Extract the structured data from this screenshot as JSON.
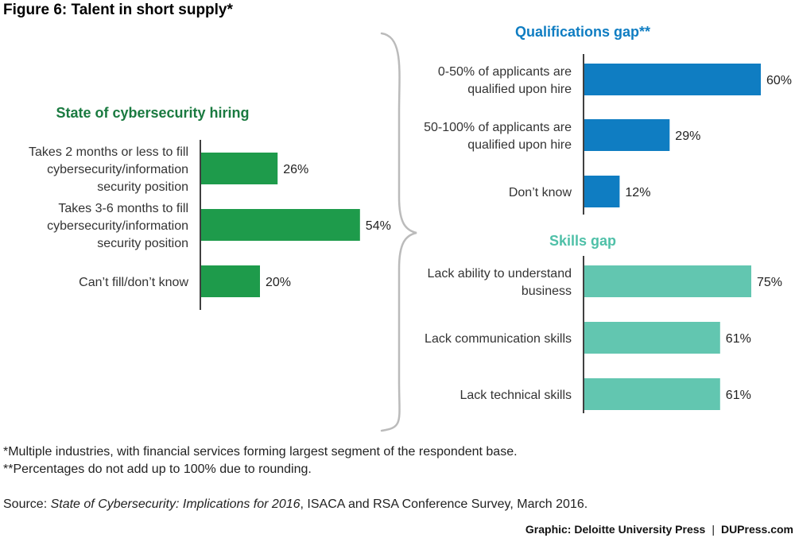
{
  "figure_title": "Figure 6: Talent in short supply*",
  "footnotes": [
    "*Multiple industries, with financial services forming largest segment of the respondent base.",
    "**Percentages do not add up to 100% due to rounding."
  ],
  "source": {
    "prefix": "Source: ",
    "title": "State of Cybersecurity: Implications for 2016",
    "suffix": ", ISACA and RSA Conference Survey, March 2016."
  },
  "credit": {
    "graphic": "Graphic: Deloitte University Press",
    "separator": "|",
    "site": "DUPress.com"
  },
  "colors": {
    "hiring": "#1e9b4b",
    "hiring_title": "#1a7a40",
    "qualifications": "#0f7dc2",
    "qualifications_title": "#0f7dc2",
    "skills": "#62c6b0",
    "skills_title": "#4fc0a8",
    "axis": "#000000",
    "brace": "#bbbbbb"
  },
  "chart_data": [
    {
      "type": "bar",
      "orientation": "horizontal",
      "title": "State of cybersecurity hiring",
      "categories": [
        "Takes 2 months or less to fill cybersecurity/information security position",
        "Takes 3-6 months to fill cybersecurity/information security position",
        "Can’t fill/don’t know"
      ],
      "category_lines": [
        [
          "Takes 2 months or less to fill",
          "cybersecurity/information",
          "security position"
        ],
        [
          "Takes 3-6 months to fill",
          "cybersecurity/information",
          "security position"
        ],
        [
          "Can’t fill/don’t know"
        ]
      ],
      "values": [
        26,
        54,
        20
      ],
      "data_labels": [
        "26%",
        "54%",
        "20%"
      ],
      "unit": "%"
    },
    {
      "type": "bar",
      "orientation": "horizontal",
      "title": "Qualifications gap**",
      "categories": [
        "0-50% of applicants are qualified upon hire",
        "50-100% of applicants are qualified upon hire",
        "Don’t know"
      ],
      "category_lines": [
        [
          "0-50% of applicants are",
          "qualified upon hire"
        ],
        [
          "50-100% of applicants are",
          "qualified upon hire"
        ],
        [
          "Don’t know"
        ]
      ],
      "values": [
        60,
        29,
        12
      ],
      "data_labels": [
        "60%",
        "29%",
        "12%"
      ],
      "unit": "%"
    },
    {
      "type": "bar",
      "orientation": "horizontal",
      "title": "Skills gap",
      "categories": [
        "Lack ability to understand business",
        "Lack communication skills",
        "Lack technical skills"
      ],
      "category_lines": [
        [
          "Lack ability to understand",
          "business"
        ],
        [
          "Lack communication skills"
        ],
        [
          "Lack technical skills"
        ]
      ],
      "values": [
        75,
        61,
        61
      ],
      "data_labels": [
        "75%",
        "61%",
        "61%"
      ],
      "unit": "%"
    }
  ]
}
